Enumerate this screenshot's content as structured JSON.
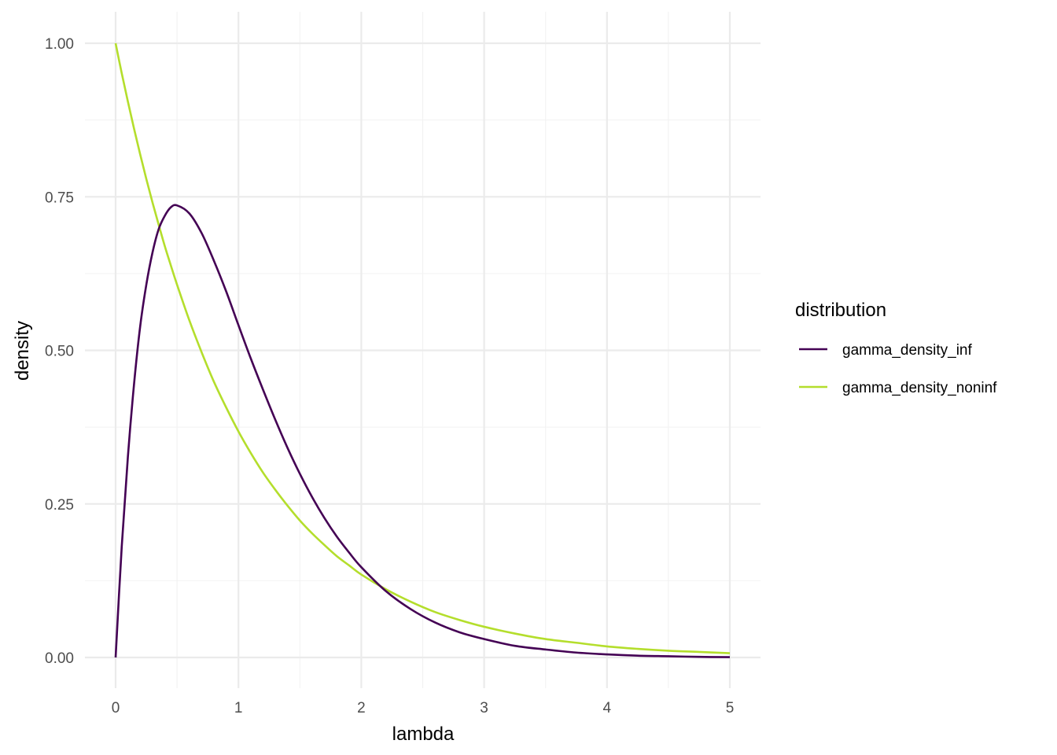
{
  "chart_data": {
    "type": "line",
    "xlabel": "lambda",
    "ylabel": "density",
    "xlim": [
      0,
      5
    ],
    "ylim": [
      0,
      1
    ],
    "x_ticks": [
      0,
      1,
      2,
      3,
      4,
      5
    ],
    "x_tick_labels": [
      "0",
      "1",
      "2",
      "3",
      "4",
      "5"
    ],
    "y_ticks": [
      0,
      0.25,
      0.5,
      0.75,
      1
    ],
    "y_tick_labels": [
      "0.00",
      "0.25",
      "0.50",
      "0.75",
      "1.00"
    ],
    "grid": true,
    "legend": {
      "title": "distribution",
      "position": "right"
    },
    "x": [
      0,
      0.05,
      0.1,
      0.15,
      0.2,
      0.25,
      0.3,
      0.35,
      0.4,
      0.45,
      0.5,
      0.6,
      0.7,
      0.8,
      0.9,
      1.0,
      1.1,
      1.2,
      1.3,
      1.4,
      1.5,
      1.6,
      1.7,
      1.8,
      1.9,
      2.0,
      2.2,
      2.4,
      2.6,
      2.8,
      3.0,
      3.25,
      3.5,
      3.75,
      4.0,
      4.25,
      4.5,
      4.75,
      5.0
    ],
    "series": [
      {
        "name": "gamma_density_inf",
        "color": "#440154",
        "values": [
          0,
          0.181,
          0.327,
          0.445,
          0.539,
          0.607,
          0.659,
          0.697,
          0.719,
          0.733,
          0.736,
          0.723,
          0.691,
          0.646,
          0.596,
          0.541,
          0.487,
          0.436,
          0.387,
          0.341,
          0.299,
          0.261,
          0.227,
          0.197,
          0.171,
          0.147,
          0.108,
          0.079,
          0.057,
          0.041,
          0.03,
          0.019,
          0.013,
          0.008,
          0.005,
          0.003,
          0.002,
          0.001,
          0.0005
        ]
      },
      {
        "name": "gamma_density_noninf",
        "color": "#B4DE2C",
        "values": [
          1.0,
          0.951,
          0.905,
          0.861,
          0.819,
          0.779,
          0.741,
          0.705,
          0.67,
          0.638,
          0.607,
          0.549,
          0.497,
          0.449,
          0.407,
          0.368,
          0.333,
          0.301,
          0.273,
          0.247,
          0.223,
          0.202,
          0.183,
          0.165,
          0.15,
          0.135,
          0.111,
          0.091,
          0.074,
          0.061,
          0.05,
          0.039,
          0.03,
          0.024,
          0.018,
          0.014,
          0.011,
          0.009,
          0.007
        ]
      }
    ]
  }
}
